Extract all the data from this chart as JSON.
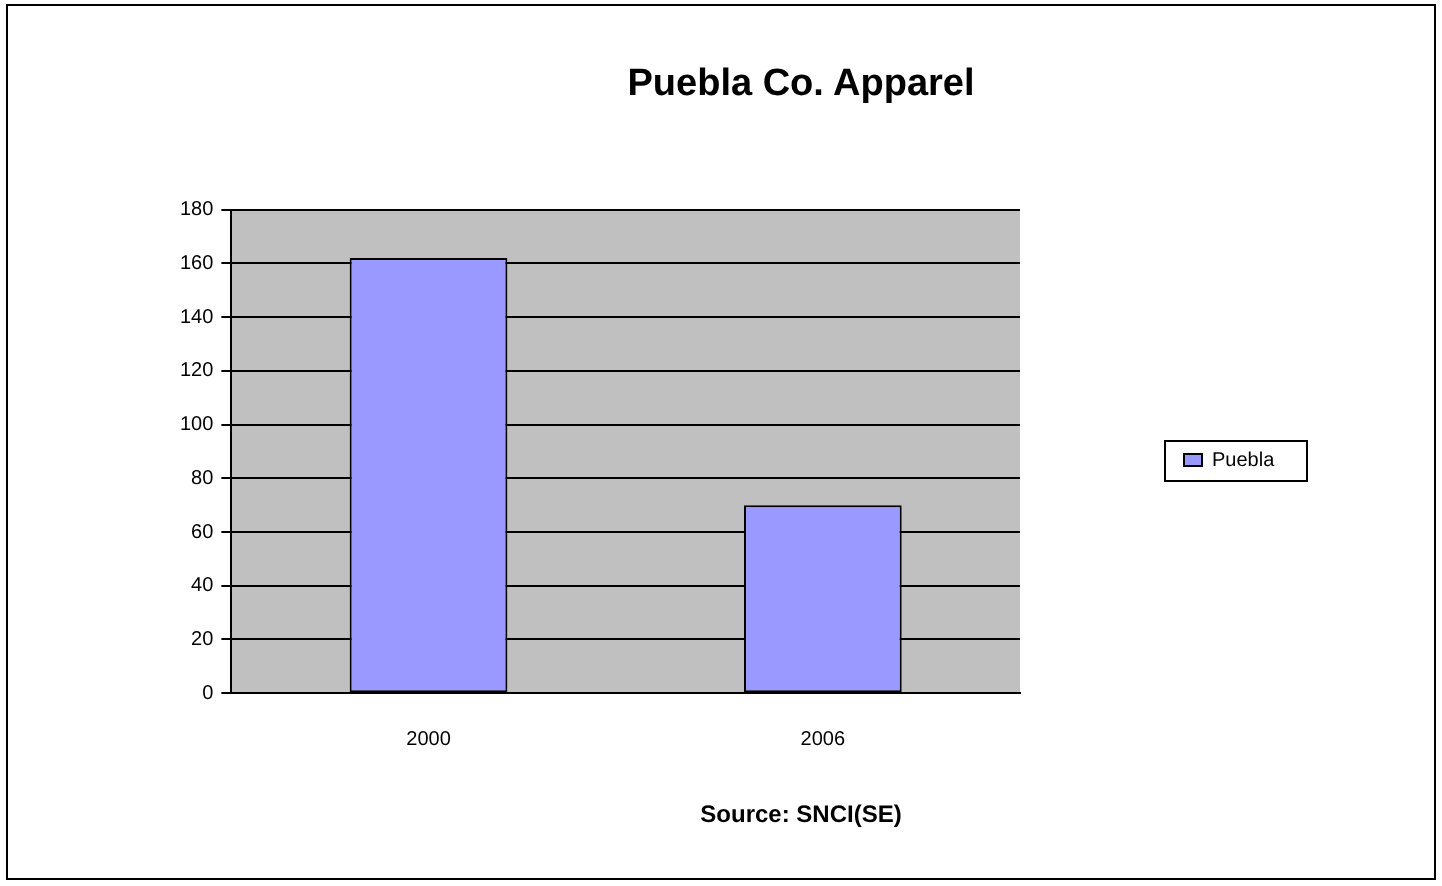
{
  "chart_data": {
    "type": "bar",
    "title": "Puebla Co. Apparel",
    "categories": [
      "2000",
      "2006"
    ],
    "series": [
      {
        "name": "Puebla",
        "color": "#9999ff",
        "values": [
          162,
          70
        ]
      }
    ],
    "ylim": [
      0,
      180
    ],
    "yticks": [
      0,
      20,
      40,
      60,
      80,
      100,
      120,
      140,
      160,
      180
    ],
    "grid": "y",
    "legend": "right",
    "annotations": [
      "Source: SNCI(SE)"
    ]
  }
}
